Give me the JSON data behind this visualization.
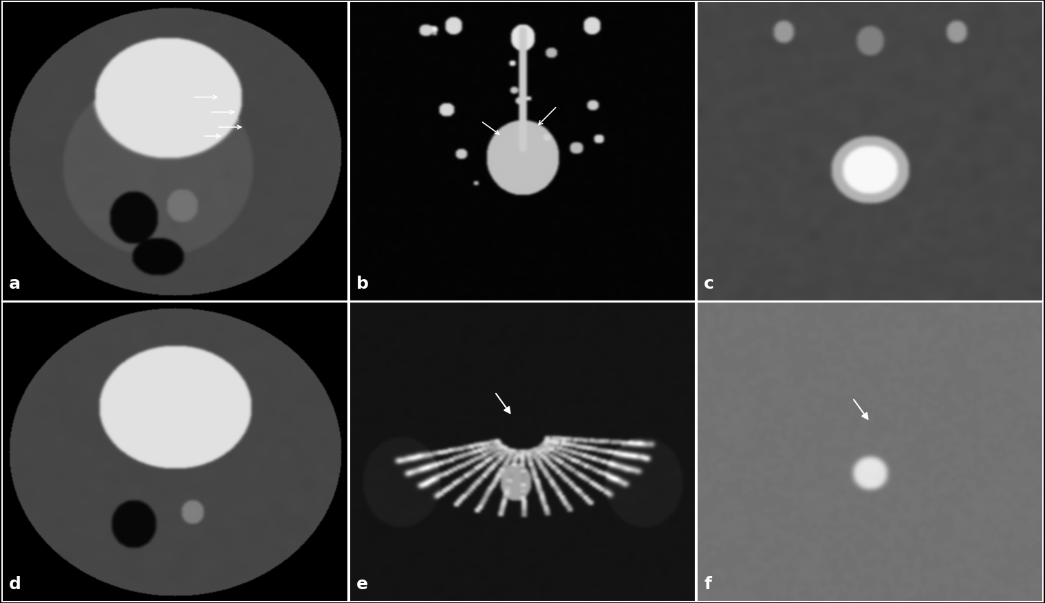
{
  "figsize": [
    15.13,
    8.73
  ],
  "dpi": 100,
  "background_color": "#000000",
  "panel_labels": [
    "a",
    "b",
    "c",
    "d",
    "e",
    "f"
  ],
  "label_color": "white",
  "label_fontsize": 18,
  "border_color": "white",
  "border_linewidth": 1.5,
  "outer_border_color": "white",
  "outer_border_linewidth": 2,
  "grid_rows": 2,
  "grid_cols": 3,
  "hspace": 0.01,
  "wspace": 0.01
}
